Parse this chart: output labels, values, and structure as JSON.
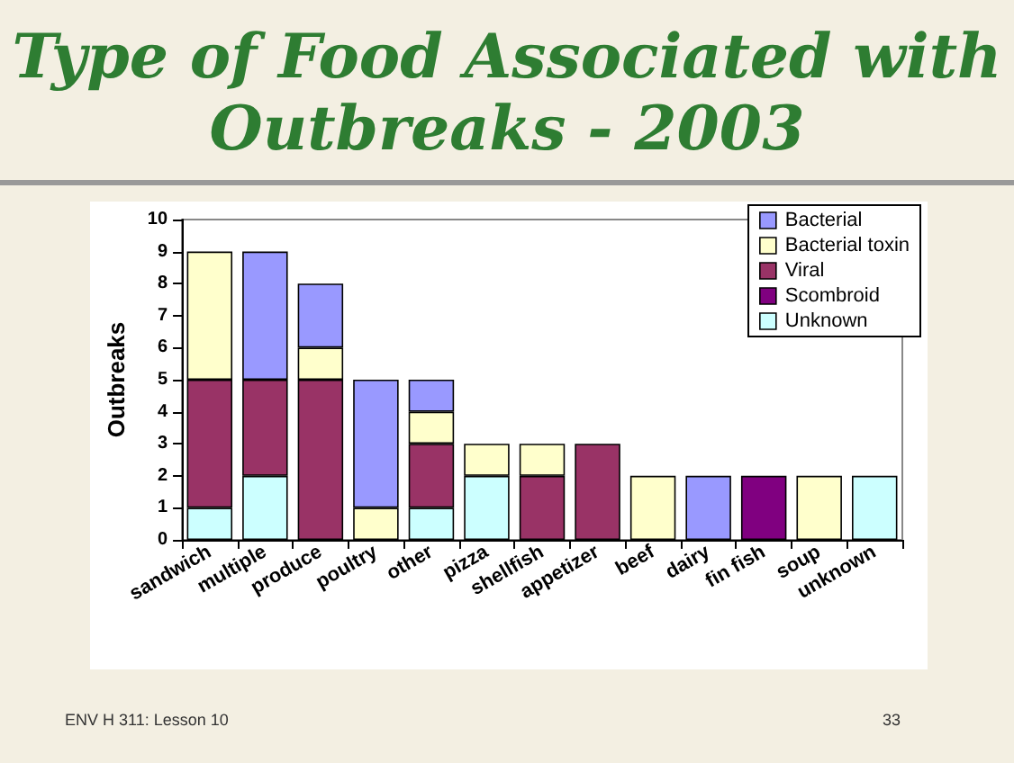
{
  "chart_data": {
    "type": "bar",
    "stacked": true,
    "title": "Type of Food Associated with Outbreaks - 2003",
    "ylabel": "Outbreaks",
    "categories": [
      "sandwich",
      "multiple",
      "produce",
      "poultry",
      "other",
      "pizza",
      "shellfish",
      "appetizer",
      "beef",
      "dairy",
      "fin fish",
      "soup",
      "unknown"
    ],
    "series": [
      {
        "name": "Unknown",
        "color": "#ccffff",
        "values": [
          1,
          2,
          null,
          null,
          1,
          2,
          null,
          null,
          null,
          null,
          null,
          null,
          2
        ]
      },
      {
        "name": "Scombroid",
        "color": "#800080",
        "values": [
          null,
          null,
          null,
          null,
          null,
          null,
          null,
          null,
          null,
          null,
          2,
          null,
          null
        ]
      },
      {
        "name": "Viral",
        "color": "#993366",
        "values": [
          4,
          3,
          5,
          null,
          2,
          null,
          2,
          3,
          null,
          null,
          null,
          null,
          null
        ]
      },
      {
        "name": "Bacterial toxin",
        "color": "#ffffcc",
        "values": [
          4,
          null,
          1,
          1,
          1,
          1,
          1,
          null,
          2,
          null,
          null,
          2,
          null
        ]
      },
      {
        "name": "Bacterial",
        "color": "#9999ff",
        "values": [
          null,
          4,
          2,
          4,
          1,
          null,
          null,
          null,
          null,
          2,
          null,
          null,
          null
        ]
      }
    ],
    "ylim": [
      0,
      10
    ],
    "yticks": [
      0,
      1,
      2,
      3,
      4,
      5,
      6,
      7,
      8,
      9,
      10
    ],
    "grid": false,
    "legend": "top right",
    "annotations": [
      "ENV H 311: Lesson 10",
      "33"
    ]
  }
}
